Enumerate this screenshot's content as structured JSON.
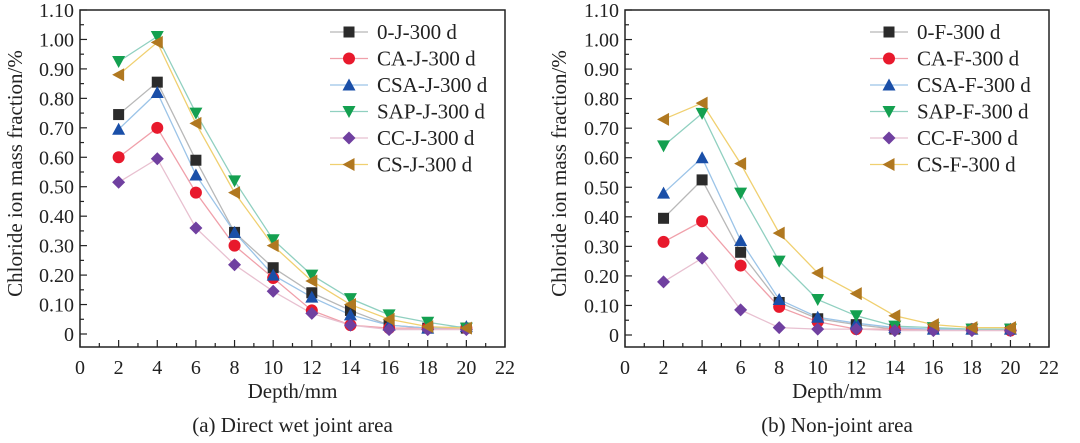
{
  "chart_data": [
    {
      "type": "line",
      "caption": "(a) Direct wet joint area",
      "xlabel": "Depth/mm",
      "ylabel": "Chloride ion mass fraction/%",
      "xlim": [
        0,
        22
      ],
      "ylim": [
        0,
        1.1
      ],
      "xticks": [
        "0",
        "2",
        "4",
        "6",
        "8",
        "10",
        "12",
        "14",
        "16",
        "18",
        "20",
        "22"
      ],
      "yticks": [
        "0",
        "0.10",
        "0.20",
        "0.30",
        "0.40",
        "0.50",
        "0.60",
        "0.70",
        "0.80",
        "0.90",
        "1.00",
        "1.10"
      ],
      "grid": false,
      "legend_position": "top-right",
      "x": [
        2,
        4,
        6,
        8,
        10,
        12,
        14,
        16,
        18,
        20
      ],
      "series": [
        {
          "name": "0-J-300 d",
          "marker": "square",
          "marker_color": "#2b2b2b",
          "line_color": "#b8b8b8",
          "values": [
            0.745,
            0.855,
            0.59,
            0.345,
            0.225,
            0.14,
            0.08,
            0.03,
            0.02,
            0.02
          ]
        },
        {
          "name": "CA-J-300 d",
          "marker": "circle",
          "marker_color": "#e8192c",
          "line_color": "#f0a0aa",
          "values": [
            0.6,
            0.7,
            0.48,
            0.3,
            0.19,
            0.08,
            0.03,
            0.02,
            0.02,
            0.02
          ]
        },
        {
          "name": "CSA-J-300 d",
          "marker": "triangle-up",
          "marker_color": "#1a4fa8",
          "line_color": "#9cc4e8",
          "values": [
            0.695,
            0.82,
            0.54,
            0.345,
            0.2,
            0.125,
            0.065,
            0.03,
            0.02,
            0.025
          ]
        },
        {
          "name": "SAP-J-300 d",
          "marker": "triangle-down",
          "marker_color": "#14a050",
          "line_color": "#90d0c0",
          "values": [
            0.925,
            1.01,
            0.75,
            0.52,
            0.32,
            0.2,
            0.12,
            0.065,
            0.04,
            0.02
          ]
        },
        {
          "name": "CC-J-300 d",
          "marker": "diamond",
          "marker_color": "#7040a0",
          "line_color": "#e8c0d0",
          "values": [
            0.515,
            0.595,
            0.36,
            0.235,
            0.145,
            0.07,
            0.03,
            0.015,
            0.015,
            0.015
          ]
        },
        {
          "name": "CS-J-300 d",
          "marker": "triangle-left",
          "marker_color": "#b07820",
          "line_color": "#f0d070",
          "values": [
            0.88,
            0.99,
            0.715,
            0.48,
            0.3,
            0.18,
            0.1,
            0.05,
            0.025,
            0.02
          ]
        }
      ]
    },
    {
      "type": "line",
      "caption": "(b) Non-joint area",
      "xlabel": "Depth/mm",
      "ylabel": "Chloride ion mass fraction/%",
      "xlim": [
        0,
        22
      ],
      "ylim": [
        0,
        1.1
      ],
      "xticks": [
        "0",
        "2",
        "4",
        "6",
        "8",
        "10",
        "12",
        "14",
        "16",
        "18",
        "20",
        "22"
      ],
      "yticks": [
        "0",
        "0.10",
        "0.20",
        "0.30",
        "0.40",
        "0.50",
        "0.60",
        "0.70",
        "0.80",
        "0.90",
        "1.00",
        "1.10"
      ],
      "grid": false,
      "legend_position": "top-right",
      "x": [
        2,
        4,
        6,
        8,
        10,
        12,
        14,
        16,
        18,
        20
      ],
      "series": [
        {
          "name": "0-F-300 d",
          "marker": "square",
          "marker_color": "#2b2b2b",
          "line_color": "#b8b8b8",
          "values": [
            0.395,
            0.525,
            0.28,
            0.11,
            0.055,
            0.035,
            0.02,
            0.02,
            0.02,
            0.02
          ]
        },
        {
          "name": "CA-F-300 d",
          "marker": "circle",
          "marker_color": "#e8192c",
          "line_color": "#f0a0aa",
          "values": [
            0.315,
            0.385,
            0.235,
            0.095,
            0.045,
            0.02,
            0.02,
            0.02,
            0.02,
            0.015
          ]
        },
        {
          "name": "CSA-F-300 d",
          "marker": "triangle-up",
          "marker_color": "#1a4fa8",
          "line_color": "#9cc4e8",
          "values": [
            0.48,
            0.6,
            0.32,
            0.12,
            0.06,
            0.04,
            0.025,
            0.02,
            0.02,
            0.02
          ]
        },
        {
          "name": "SAP-F-300 d",
          "marker": "triangle-down",
          "marker_color": "#14a050",
          "line_color": "#90d0c0",
          "values": [
            0.64,
            0.75,
            0.48,
            0.25,
            0.12,
            0.065,
            0.03,
            0.025,
            0.02,
            0.02
          ]
        },
        {
          "name": "CC-F-300 d",
          "marker": "diamond",
          "marker_color": "#7040a0",
          "line_color": "#e8c0d0",
          "values": [
            0.18,
            0.26,
            0.085,
            0.025,
            0.02,
            0.02,
            0.015,
            0.015,
            0.015,
            0.015
          ]
        },
        {
          "name": "CS-F-300 d",
          "marker": "triangle-left",
          "marker_color": "#b07820",
          "line_color": "#f0d070",
          "values": [
            0.73,
            0.785,
            0.58,
            0.345,
            0.21,
            0.14,
            0.065,
            0.035,
            0.025,
            0.025
          ]
        }
      ]
    }
  ]
}
